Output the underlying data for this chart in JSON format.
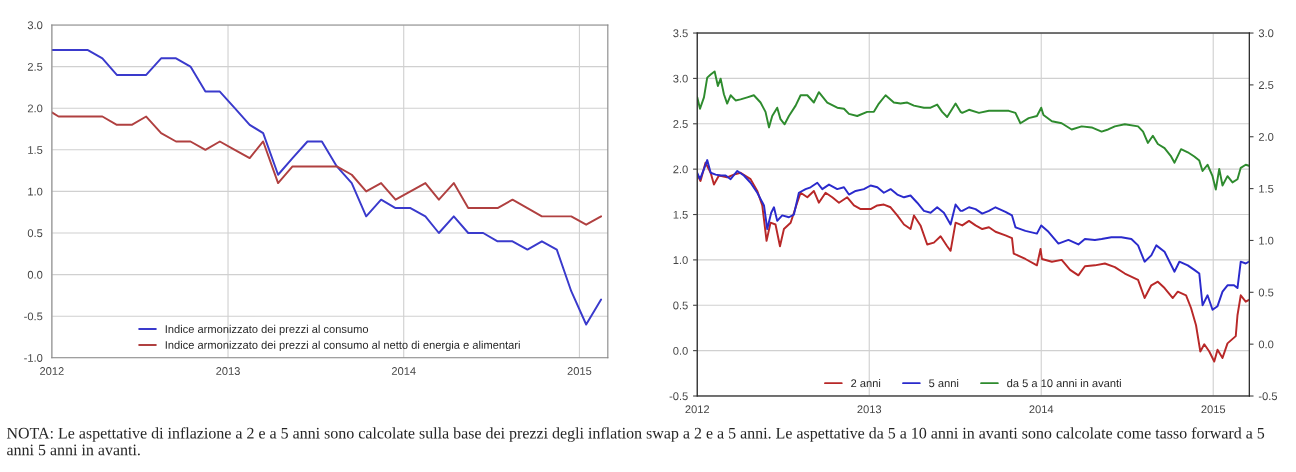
{
  "chart_data": [
    {
      "type": "line",
      "x": [
        "2012-01-01",
        "2012-01-15",
        "2012-02-15",
        "2012-03-15",
        "2012-04-15",
        "2012-05-15",
        "2012-06-15",
        "2012-07-15",
        "2012-08-15",
        "2012-09-15",
        "2012-10-15",
        "2012-11-15",
        "2012-12-15",
        "2013-01-15",
        "2013-02-15",
        "2013-03-15",
        "2013-04-15",
        "2013-05-15",
        "2013-06-15",
        "2013-07-15",
        "2013-08-15",
        "2013-09-15",
        "2013-10-15",
        "2013-11-15",
        "2013-12-15",
        "2014-01-15",
        "2014-02-15",
        "2014-03-15",
        "2014-04-15",
        "2014-05-15",
        "2014-06-15",
        "2014-07-15",
        "2014-08-15",
        "2014-09-15",
        "2014-10-15",
        "2014-11-15",
        "2014-12-15",
        "2015-01-15",
        "2015-02-15"
      ],
      "series": [
        {
          "name": "Indice armonizzato dei prezzi al consumo",
          "color": "#3a3acc",
          "values": [
            2.7,
            2.7,
            2.7,
            2.7,
            2.6,
            2.4,
            2.4,
            2.4,
            2.6,
            2.6,
            2.5,
            2.2,
            2.2,
            2.0,
            1.8,
            1.7,
            1.2,
            1.4,
            1.6,
            1.6,
            1.3,
            1.1,
            0.7,
            0.9,
            0.8,
            0.8,
            0.7,
            0.5,
            0.7,
            0.5,
            0.5,
            0.4,
            0.4,
            0.3,
            0.4,
            0.3,
            -0.2,
            -0.6,
            -0.3
          ]
        },
        {
          "name": "Indice armonizzato dei prezzi al consumo al netto di energia e alimentari",
          "color": "#b04040",
          "values": [
            1.95,
            1.9,
            1.9,
            1.9,
            1.9,
            1.8,
            1.8,
            1.9,
            1.7,
            1.6,
            1.6,
            1.5,
            1.6,
            1.5,
            1.4,
            1.6,
            1.1,
            1.3,
            1.3,
            1.3,
            1.3,
            1.2,
            1.0,
            1.1,
            0.9,
            1.0,
            1.1,
            0.9,
            1.1,
            0.8,
            0.8,
            0.8,
            0.9,
            0.8,
            0.7,
            0.7,
            0.7,
            0.6,
            0.7
          ]
        }
      ],
      "xlim": [
        "2012-01-01",
        "2015-03-01"
      ],
      "xticks": [
        {
          "value": "2012-01-01",
          "label": "2012"
        },
        {
          "value": "2013-01-01",
          "label": "2013"
        },
        {
          "value": "2014-01-01",
          "label": "2014"
        },
        {
          "value": "2015-01-01",
          "label": "2015"
        }
      ],
      "ylim": [
        -1.0,
        3.0
      ],
      "yticks": [
        {
          "value": -1.0,
          "label": "-1.0"
        },
        {
          "value": -0.5,
          "label": "-0.5"
        },
        {
          "value": 0,
          "label": "0.0"
        },
        {
          "value": 0.5,
          "label": "0.5"
        },
        {
          "value": 1.0,
          "label": "1.0"
        },
        {
          "value": 1.5,
          "label": "1.5"
        },
        {
          "value": 2.0,
          "label": "2.0"
        },
        {
          "value": 2.5,
          "label": "2.5"
        },
        {
          "value": 3.0,
          "label": "3.0"
        }
      ],
      "grid": true,
      "legend": "bottom",
      "marker": "none",
      "line_style": "solid",
      "annotations": [
        "NOTA: Le aspettative di inflazione a 2 e a 5 anni sono calcolate sulla base dei prezzi degli inflation swap a 2 e a 5 anni. Le aspettative da 5 a 10 anni in avanti sono calcolate come tasso forward a 5 anni 5 anni in avanti."
      ]
    },
    {
      "type": "line",
      "series": [
        {
          "name": "2 anni",
          "color": "#b82828",
          "x": [
            2012.0,
            2012.019,
            2012.048,
            2012.078,
            2012.097,
            2012.126,
            2012.174,
            2012.213,
            2012.252,
            2012.31,
            2012.349,
            2012.378,
            2012.403,
            2012.426,
            2012.455,
            2012.481,
            2012.504,
            2012.543,
            2012.581,
            2012.601,
            2012.64,
            2012.678,
            2012.707,
            2012.746,
            2012.785,
            2012.824,
            2012.872,
            2012.911,
            2012.95,
            2013.008,
            2013.047,
            2013.085,
            2013.124,
            2013.163,
            2013.202,
            2013.24,
            2013.26,
            2013.298,
            2013.337,
            2013.376,
            2013.415,
            2013.453,
            2013.473,
            2013.502,
            2013.541,
            2013.58,
            2013.618,
            2013.657,
            2013.696,
            2013.734,
            2013.792,
            2013.83,
            2013.84,
            2013.908,
            2013.975,
            2013.996,
            2014.004,
            2014.062,
            2014.119,
            2014.168,
            2014.216,
            2014.254,
            2014.312,
            2014.37,
            2014.428,
            2014.486,
            2014.563,
            2014.601,
            2014.64,
            2014.678,
            2014.717,
            2014.765,
            2014.794,
            2014.842,
            2014.871,
            2014.9,
            2014.925,
            2014.948,
            2014.977,
            2015.006,
            2015.025,
            2015.054,
            2015.083,
            2015.131,
            2015.141,
            2015.16,
            2015.189,
            2015.208
          ],
          "values": [
            1.94,
            1.87,
            2.07,
            1.96,
            1.83,
            1.93,
            1.91,
            1.94,
            1.96,
            1.89,
            1.76,
            1.6,
            1.21,
            1.41,
            1.39,
            1.15,
            1.34,
            1.41,
            1.63,
            1.74,
            1.69,
            1.76,
            1.63,
            1.74,
            1.69,
            1.63,
            1.69,
            1.6,
            1.56,
            1.56,
            1.6,
            1.61,
            1.58,
            1.49,
            1.39,
            1.34,
            1.49,
            1.38,
            1.17,
            1.19,
            1.26,
            1.15,
            1.1,
            1.41,
            1.38,
            1.43,
            1.38,
            1.34,
            1.36,
            1.31,
            1.27,
            1.24,
            1.07,
            1.01,
            0.94,
            1.12,
            1.01,
            0.98,
            1.0,
            0.89,
            0.83,
            0.93,
            0.94,
            0.96,
            0.92,
            0.85,
            0.78,
            0.58,
            0.72,
            0.76,
            0.69,
            0.58,
            0.65,
            0.61,
            0.47,
            0.28,
            -0.01,
            0.07,
            -0.01,
            -0.12,
            0.01,
            -0.08,
            0.08,
            0.16,
            0.39,
            0.61,
            0.54,
            0.56
          ]
        },
        {
          "name": "5 anni",
          "color": "#2a2acc",
          "x": [
            2012.0,
            2012.016,
            2012.039,
            2012.058,
            2012.078,
            2012.107,
            2012.136,
            2012.165,
            2012.194,
            2012.233,
            2012.271,
            2012.31,
            2012.349,
            2012.388,
            2012.407,
            2012.43,
            2012.446,
            2012.465,
            2012.494,
            2012.533,
            2012.562,
            2012.591,
            2012.63,
            2012.659,
            2012.698,
            2012.727,
            2012.766,
            2012.814,
            2012.853,
            2012.882,
            2012.921,
            2012.969,
            2013.008,
            2013.047,
            2013.085,
            2013.124,
            2013.163,
            2013.202,
            2013.24,
            2013.279,
            2013.318,
            2013.357,
            2013.395,
            2013.434,
            2013.473,
            2013.502,
            2013.531,
            2013.541,
            2013.58,
            2013.618,
            2013.657,
            2013.696,
            2013.734,
            2013.792,
            2013.83,
            2013.85,
            2013.908,
            2013.975,
            2014.0,
            2014.042,
            2014.1,
            2014.158,
            2014.216,
            2014.254,
            2014.312,
            2014.351,
            2014.408,
            2014.466,
            2014.524,
            2014.563,
            2014.601,
            2014.64,
            2014.669,
            2014.717,
            2014.746,
            2014.775,
            2014.803,
            2014.852,
            2014.89,
            2014.919,
            2014.938,
            2014.967,
            2014.996,
            2015.025,
            2015.054,
            2015.083,
            2015.121,
            2015.141,
            2015.16,
            2015.189,
            2015.208
          ],
          "values": [
            1.96,
            1.89,
            2.0,
            2.1,
            1.96,
            1.94,
            1.93,
            1.93,
            1.89,
            1.98,
            1.93,
            1.85,
            1.74,
            1.6,
            1.34,
            1.52,
            1.58,
            1.43,
            1.49,
            1.47,
            1.5,
            1.74,
            1.78,
            1.8,
            1.85,
            1.78,
            1.83,
            1.78,
            1.8,
            1.72,
            1.76,
            1.78,
            1.82,
            1.8,
            1.74,
            1.78,
            1.72,
            1.69,
            1.71,
            1.63,
            1.54,
            1.52,
            1.58,
            1.52,
            1.39,
            1.61,
            1.54,
            1.54,
            1.58,
            1.56,
            1.51,
            1.54,
            1.58,
            1.53,
            1.49,
            1.36,
            1.32,
            1.29,
            1.38,
            1.31,
            1.18,
            1.22,
            1.17,
            1.23,
            1.22,
            1.23,
            1.25,
            1.25,
            1.23,
            1.16,
            0.98,
            1.05,
            1.16,
            1.09,
            0.98,
            0.87,
            0.98,
            0.94,
            0.89,
            0.85,
            0.5,
            0.61,
            0.45,
            0.49,
            0.65,
            0.72,
            0.72,
            0.69,
            0.98,
            0.96,
            0.98
          ]
        },
        {
          "name": "da 5 a 10 anni in avanti",
          "color": "#2e8b2e",
          "axis": "y2",
          "x": [
            2012.0,
            2012.016,
            2012.039,
            2012.058,
            2012.078,
            2012.101,
            2012.12,
            2012.136,
            2012.155,
            2012.174,
            2012.194,
            2012.223,
            2012.252,
            2012.291,
            2012.329,
            2012.368,
            2012.397,
            2012.417,
            2012.436,
            2012.465,
            2012.484,
            2012.508,
            2012.533,
            2012.572,
            2012.601,
            2012.64,
            2012.678,
            2012.707,
            2012.756,
            2012.814,
            2012.853,
            2012.882,
            2012.93,
            2012.988,
            2013.027,
            2013.056,
            2013.095,
            2013.143,
            2013.182,
            2013.221,
            2013.26,
            2013.318,
            2013.357,
            2013.395,
            2013.424,
            2013.453,
            2013.502,
            2013.531,
            2013.541,
            2013.58,
            2013.638,
            2013.696,
            2013.753,
            2013.811,
            2013.85,
            2013.879,
            2013.927,
            2013.975,
            2014.0,
            2014.013,
            2014.062,
            2014.119,
            2014.177,
            2014.235,
            2014.293,
            2014.351,
            2014.389,
            2014.428,
            2014.486,
            2014.563,
            2014.592,
            2014.62,
            2014.649,
            2014.678,
            2014.717,
            2014.755,
            2014.775,
            2014.813,
            2014.852,
            2014.89,
            2014.919,
            2014.938,
            2014.967,
            2014.996,
            2015.015,
            2015.035,
            2015.054,
            2015.083,
            2015.112,
            2015.141,
            2015.16,
            2015.189,
            2015.208
          ],
          "values": [
            2.38,
            2.27,
            2.38,
            2.57,
            2.6,
            2.63,
            2.49,
            2.56,
            2.41,
            2.32,
            2.4,
            2.35,
            2.36,
            2.38,
            2.4,
            2.33,
            2.24,
            2.09,
            2.2,
            2.28,
            2.17,
            2.12,
            2.2,
            2.3,
            2.4,
            2.4,
            2.33,
            2.43,
            2.33,
            2.28,
            2.27,
            2.22,
            2.2,
            2.24,
            2.24,
            2.32,
            2.4,
            2.33,
            2.32,
            2.33,
            2.3,
            2.28,
            2.28,
            2.31,
            2.24,
            2.19,
            2.32,
            2.24,
            2.23,
            2.26,
            2.23,
            2.25,
            2.25,
            2.25,
            2.23,
            2.13,
            2.18,
            2.2,
            2.28,
            2.21,
            2.15,
            2.13,
            2.07,
            2.1,
            2.09,
            2.05,
            2.07,
            2.1,
            2.12,
            2.1,
            2.05,
            1.94,
            2.01,
            1.93,
            1.89,
            1.81,
            1.75,
            1.88,
            1.85,
            1.81,
            1.77,
            1.67,
            1.73,
            1.62,
            1.49,
            1.69,
            1.53,
            1.62,
            1.56,
            1.59,
            1.7,
            1.73,
            1.72
          ]
        }
      ],
      "xlim": [
        2012,
        2015.21
      ],
      "xticks": [
        2012,
        2013,
        2014,
        2015
      ],
      "ylim": [
        -0.5,
        3.5
      ],
      "yticks": [
        {
          "value": -0.5,
          "label": "-0.5"
        },
        {
          "value": 0,
          "label": "0.0"
        },
        {
          "value": 0.5,
          "label": "0.5"
        },
        {
          "value": 1.0,
          "label": "1.0"
        },
        {
          "value": 1.5,
          "label": "1.5"
        },
        {
          "value": 2.0,
          "label": "2.0"
        },
        {
          "value": 2.5,
          "label": "2.5"
        },
        {
          "value": 3.0,
          "label": "3.0"
        },
        {
          "value": 3.5,
          "label": "3.5"
        }
      ],
      "y2lim": [
        -0.5,
        3.0
      ],
      "y2ticks": [
        {
          "value": -0.5,
          "label": "-0.5"
        },
        {
          "value": 0,
          "label": "0.0"
        },
        {
          "value": 0.5,
          "label": "0.5"
        },
        {
          "value": 1.0,
          "label": "1.0"
        },
        {
          "value": 1.5,
          "label": "1.5"
        },
        {
          "value": 2.0,
          "label": "2.0"
        },
        {
          "value": 2.5,
          "label": "2.5"
        },
        {
          "value": 3.0,
          "label": "3.0"
        }
      ],
      "grid": true,
      "legend": "bottom",
      "marker": "none",
      "line_style": "solid"
    }
  ]
}
